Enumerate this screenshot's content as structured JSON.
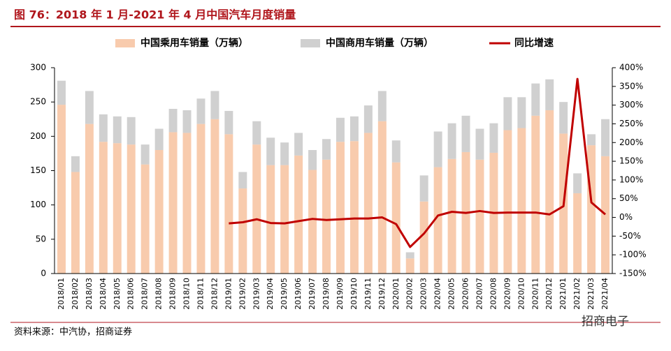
{
  "chart_data": {
    "type": "bar_line",
    "title": "图 76：2018 年 1 月-2021 年 4 月中国汽车月度销量",
    "source": "资料来源：中汽协，招商证券",
    "watermark": "招商电子",
    "categories": [
      "2018/01",
      "2018/02",
      "2018/03",
      "2018/04",
      "2018/05",
      "2018/06",
      "2018/07",
      "2018/08",
      "2018/09",
      "2018/10",
      "2018/11",
      "2018/12",
      "2019/01",
      "2019/02",
      "2019/03",
      "2019/04",
      "2019/05",
      "2019/06",
      "2019/07",
      "2019/08",
      "2019/09",
      "2019/10",
      "2019/11",
      "2019/12",
      "2020/01",
      "2020/02",
      "2020/03",
      "2020/04",
      "2020/05",
      "2020/06",
      "2020/07",
      "2020/08",
      "2020/09",
      "2020/10",
      "2020/11",
      "2020/12",
      "2021/01",
      "2021/02",
      "2021/03",
      "2021/04"
    ],
    "series": [
      {
        "name": "中国乘用车销量（万辆）",
        "color": "#f8cbad",
        "type": "bar",
        "values": [
          246,
          148,
          218,
          192,
          190,
          188,
          159,
          180,
          206,
          205,
          218,
          225,
          203,
          124,
          188,
          158,
          158,
          172,
          151,
          166,
          192,
          193,
          205,
          222,
          162,
          22,
          105,
          155,
          167,
          177,
          166,
          176,
          209,
          212,
          230,
          238,
          204,
          117,
          187,
          171
        ]
      },
      {
        "name": "中国商用车销量（万辆）",
        "color": "#d0d0d0",
        "type": "bar",
        "values": [
          35,
          23,
          48,
          40,
          39,
          40,
          29,
          31,
          34,
          33,
          37,
          41,
          34,
          24,
          34,
          40,
          33,
          33,
          29,
          30,
          35,
          36,
          40,
          44,
          32,
          9,
          38,
          52,
          52,
          53,
          45,
          43,
          48,
          45,
          47,
          45,
          46,
          29,
          16,
          54
        ]
      },
      {
        "name": "同比增速",
        "color": "#c00000",
        "type": "line",
        "axis": "y2",
        "values": [
          null,
          null,
          null,
          null,
          null,
          null,
          null,
          null,
          null,
          null,
          null,
          null,
          -16,
          -13,
          -5,
          -15,
          -16,
          -10,
          -4,
          -7,
          -5,
          -3,
          -3,
          0,
          -18,
          -79,
          -43,
          5,
          15,
          12,
          17,
          12,
          13,
          13,
          13,
          8,
          30,
          370,
          40,
          8
        ]
      }
    ],
    "ylim": [
      0,
      300
    ],
    "yticks": [
      0,
      50,
      100,
      150,
      200,
      250,
      300
    ],
    "y2lim": [
      -150,
      400
    ],
    "y2ticks": [
      {
        "value": -150,
        "label": "-150%"
      },
      {
        "value": -100,
        "label": "-100%"
      },
      {
        "value": -50,
        "label": "-50%"
      },
      {
        "value": 0,
        "label": "0%"
      },
      {
        "value": 50,
        "label": "50%"
      },
      {
        "value": 100,
        "label": "100%"
      },
      {
        "value": 150,
        "label": "150%"
      },
      {
        "value": 200,
        "label": "200%"
      },
      {
        "value": 250,
        "label": "250%"
      },
      {
        "value": 300,
        "label": "300%"
      },
      {
        "value": 350,
        "label": "350%"
      },
      {
        "value": 400,
        "label": "400%"
      }
    ]
  }
}
